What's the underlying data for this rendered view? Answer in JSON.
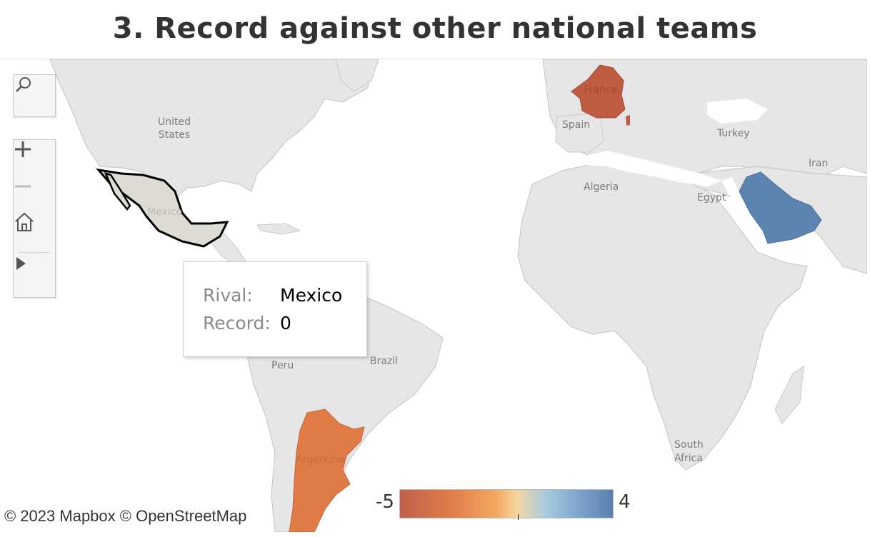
{
  "title": "3. Record against other national teams",
  "map": {
    "labels": {
      "united_states": [
        "United",
        "States"
      ],
      "mexico": "Mexico",
      "peru": "Peru",
      "brazil": "Brazil",
      "argentina": "Argentina",
      "spain": "Spain",
      "france": "France",
      "turkey": "Turkey",
      "iran": "Iran",
      "algeria": "Algeria",
      "egypt": "Egypt",
      "south_africa": [
        "South",
        "Africa"
      ]
    },
    "colors": {
      "land": "#e6e6e6",
      "ocean": "#ffffff",
      "border": "#c9c9c9",
      "france": "#bf5d43",
      "argentina": "#e07b47",
      "saudi_arabia": "#5b84b1",
      "mexico_fill": "#dedad4",
      "mexico_outline": "#000000"
    },
    "records": [
      {
        "rival": "France",
        "record": -5
      },
      {
        "rival": "Argentina",
        "record": -4
      },
      {
        "rival": "Mexico",
        "record": 0
      },
      {
        "rival": "Saudi Arabia",
        "record": 4
      }
    ]
  },
  "controls": {
    "search_icon": "search-icon",
    "zoom_in_icon": "plus-icon",
    "zoom_out_icon": "minus-icon",
    "home_icon": "home-icon",
    "expand_icon": "play-icon"
  },
  "tooltip": {
    "rival_label": "Rival:",
    "rival_value": "Mexico",
    "record_label": "Record:",
    "record_value": "0"
  },
  "attribution": "© 2023 Mapbox  © OpenStreetMap",
  "legend": {
    "min": "-5",
    "max": "4",
    "colors": [
      "#c0614a",
      "#e07e4a",
      "#f2a860",
      "#f6d6a0",
      "#a9cbe0",
      "#7aa3cc",
      "#5a7fae"
    ]
  }
}
